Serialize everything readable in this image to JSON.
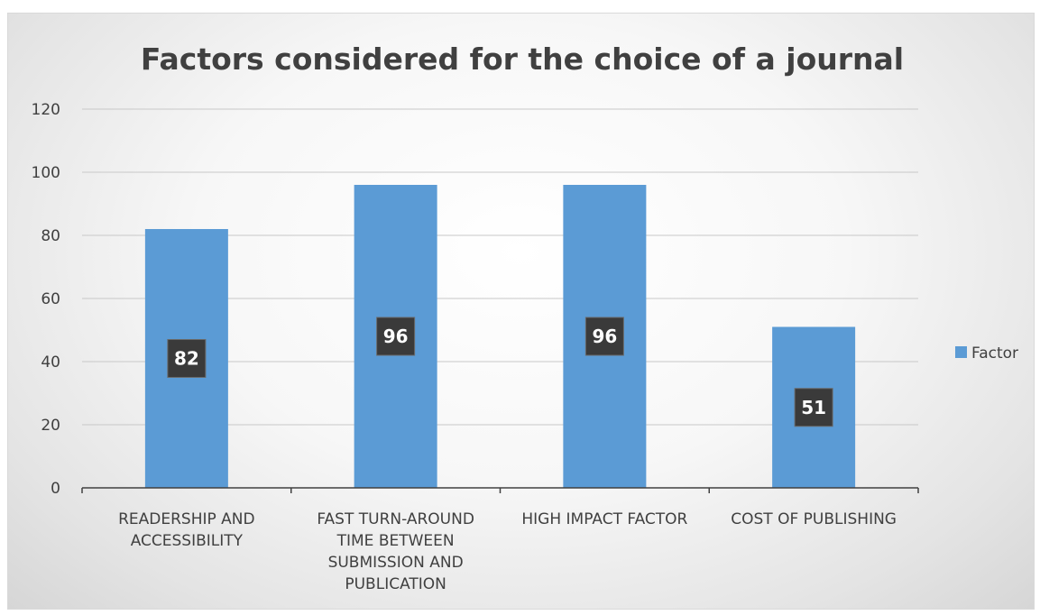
{
  "chart_data": {
    "type": "bar",
    "title": "Factors considered for the choice of a journal",
    "categories": [
      [
        "READERSHIP AND",
        "ACCESSIBILITY"
      ],
      [
        "FAST TURN-AROUND",
        "TIME BETWEEN",
        "SUBMISSION AND",
        "PUBLICATION"
      ],
      [
        "HIGH IMPACT FACTOR"
      ],
      [
        "COST OF PUBLISHING"
      ]
    ],
    "series": [
      {
        "name": "Factor",
        "values": [
          82,
          96,
          96,
          51
        ],
        "color": "#5b9bd5"
      }
    ],
    "ylim": [
      0,
      120
    ],
    "yticks": [
      0,
      20,
      40,
      60,
      80,
      100,
      120
    ],
    "grid": true,
    "legend": "right",
    "data_labels": true
  }
}
